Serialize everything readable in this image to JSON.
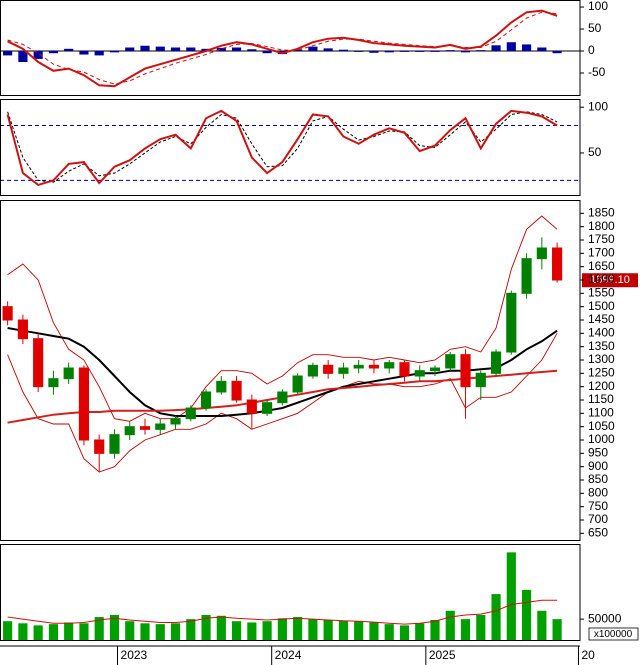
{
  "chart_data": [
    {
      "type": "macd",
      "ylim": [
        -100,
        116
      ],
      "yticks": [
        100,
        50,
        0,
        -50
      ],
      "macd": {
        "color": "#d01010",
        "values": [
          22,
          5,
          -25,
          -45,
          -40,
          -55,
          -78,
          -80,
          -60,
          -40,
          -30,
          -20,
          -10,
          0,
          12,
          20,
          15,
          5,
          -5,
          5,
          20,
          28,
          30,
          25,
          18,
          15,
          12,
          10,
          8,
          14,
          5,
          10,
          35,
          65,
          88,
          92,
          80
        ]
      },
      "signal": {
        "color": "#d01010",
        "values": [
          25,
          15,
          -5,
          -30,
          -42,
          -48,
          -65,
          -75,
          -68,
          -52,
          -40,
          -28,
          -18,
          -8,
          5,
          15,
          17,
          10,
          2,
          2,
          12,
          22,
          27,
          27,
          22,
          18,
          15,
          12,
          10,
          12,
          8,
          8,
          22,
          48,
          75,
          88,
          85
        ]
      },
      "histogram": {
        "color": "#0000a0",
        "values": [
          -10,
          -25,
          -18,
          -5,
          5,
          -8,
          -10,
          -3,
          8,
          12,
          10,
          8,
          8,
          5,
          7,
          8,
          4,
          -5,
          -7,
          3,
          10,
          6,
          3,
          -2,
          -4,
          -3,
          -2,
          -2,
          -2,
          2,
          -3,
          2,
          13,
          20,
          15,
          8,
          -5
        ]
      }
    },
    {
      "type": "stochastic",
      "ylim": [
        4,
        109
      ],
      "yticks": [
        100,
        50
      ],
      "reference_lines": [
        80,
        20
      ],
      "reference_color": "#0000a0",
      "k": {
        "color": "#d01010",
        "values": [
          92,
          28,
          15,
          20,
          38,
          40,
          17,
          35,
          42,
          55,
          65,
          70,
          55,
          88,
          96,
          85,
          45,
          28,
          40,
          65,
          92,
          90,
          68,
          60,
          70,
          77,
          72,
          52,
          58,
          75,
          88,
          55,
          82,
          96,
          94,
          90,
          80
        ]
      },
      "d": {
        "color": "#000000",
        "values": [
          95,
          45,
          20,
          18,
          30,
          38,
          25,
          28,
          38,
          50,
          62,
          68,
          60,
          78,
          92,
          88,
          60,
          35,
          36,
          55,
          85,
          90,
          76,
          64,
          68,
          74,
          73,
          58,
          56,
          70,
          84,
          62,
          76,
          92,
          95,
          92,
          84
        ]
      }
    },
    {
      "type": "candlestick",
      "ylim": [
        625,
        1900
      ],
      "yticks": [
        650,
        700,
        750,
        800,
        850,
        900,
        950,
        1000,
        1050,
        1100,
        1150,
        1200,
        1250,
        1300,
        1350,
        1400,
        1450,
        1500,
        1550,
        1600,
        1650,
        1700,
        1750,
        1800,
        1850
      ],
      "up_color": "#008000",
      "down_color": "#e00000",
      "open": [
        1500,
        1450,
        1380,
        1200,
        1230,
        1270,
        1000,
        950,
        1020,
        1050,
        1040,
        1060,
        1080,
        1120,
        1180,
        1220,
        1150,
        1100,
        1140,
        1180,
        1240,
        1280,
        1250,
        1270,
        1280,
        1270,
        1290,
        1240,
        1260,
        1270,
        1320,
        1200,
        1250,
        1330,
        1550,
        1680,
        1720
      ],
      "high": [
        1520,
        1470,
        1400,
        1260,
        1290,
        1280,
        1020,
        1040,
        1070,
        1080,
        1080,
        1090,
        1130,
        1190,
        1240,
        1240,
        1170,
        1150,
        1190,
        1250,
        1290,
        1300,
        1290,
        1300,
        1300,
        1300,
        1300,
        1280,
        1280,
        1330,
        1340,
        1260,
        1340,
        1560,
        1700,
        1760,
        1740
      ],
      "low": [
        1430,
        1360,
        1180,
        1170,
        1210,
        980,
        880,
        930,
        1000,
        1020,
        1020,
        1040,
        1070,
        1110,
        1170,
        1140,
        1040,
        1090,
        1130,
        1170,
        1230,
        1230,
        1230,
        1250,
        1250,
        1250,
        1220,
        1220,
        1240,
        1260,
        1080,
        1150,
        1240,
        1320,
        1530,
        1640,
        1590
      ],
      "close": [
        1450,
        1380,
        1200,
        1230,
        1270,
        1000,
        950,
        1020,
        1050,
        1040,
        1060,
        1080,
        1120,
        1180,
        1220,
        1150,
        1100,
        1140,
        1180,
        1240,
        1280,
        1250,
        1270,
        1280,
        1270,
        1290,
        1240,
        1260,
        1270,
        1320,
        1200,
        1250,
        1330,
        1550,
        1680,
        1720,
        1600
      ],
      "lines": [
        {
          "color": "#c00000",
          "values": [
            1620,
            1660,
            1600,
            1440,
            1340,
            1300,
            1200,
            1080,
            1070,
            1100,
            1080,
            1080,
            1120,
            1200,
            1260,
            1260,
            1250,
            1210,
            1240,
            1290,
            1320,
            1320,
            1310,
            1310,
            1300,
            1310,
            1300,
            1290,
            1300,
            1340,
            1350,
            1330,
            1420,
            1640,
            1790,
            1840,
            1790
          ]
        },
        {
          "color": "#c00000",
          "values": [
            1320,
            1180,
            1080,
            1060,
            1060,
            930,
            880,
            900,
            960,
            1000,
            1020,
            1040,
            1040,
            1060,
            1100,
            1080,
            1040,
            1060,
            1080,
            1100,
            1140,
            1180,
            1200,
            1220,
            1210,
            1210,
            1200,
            1200,
            1210,
            1230,
            1120,
            1160,
            1160,
            1180,
            1240,
            1300,
            1400
          ]
        },
        {
          "color": "#000000",
          "values": [
            1420,
            1410,
            1400,
            1390,
            1380,
            1350,
            1300,
            1240,
            1180,
            1130,
            1100,
            1090,
            1090,
            1090,
            1090,
            1095,
            1100,
            1110,
            1120,
            1140,
            1160,
            1180,
            1200,
            1210,
            1220,
            1230,
            1240,
            1250,
            1250,
            1260,
            1260,
            1265,
            1270,
            1300,
            1340,
            1370,
            1410
          ]
        },
        {
          "color": "#d02020",
          "values": [
            1065,
            1075,
            1085,
            1095,
            1100,
            1105,
            1105,
            1110,
            1110,
            1110,
            1110,
            1112,
            1115,
            1120,
            1125,
            1130,
            1140,
            1150,
            1160,
            1170,
            1180,
            1190,
            1195,
            1200,
            1205,
            1210,
            1215,
            1220,
            1220,
            1225,
            1230,
            1235,
            1240,
            1245,
            1250,
            1255,
            1260
          ]
        }
      ],
      "last_price": {
        "value": 1599.1,
        "label": "1599.10"
      }
    },
    {
      "type": "volume",
      "ylim": [
        0,
        230000
      ],
      "yticks": [
        50000
      ],
      "unit_label": "x100000",
      "xlim": [
        -0.5,
        37.5
      ],
      "xticks": [
        {
          "value": 7.2,
          "label": "2023"
        },
        {
          "value": 17.3,
          "label": "2024"
        },
        {
          "value": 27.4,
          "label": "2025"
        },
        {
          "value": 37.4,
          "label": "20"
        }
      ],
      "color": "#00a000",
      "values": [
        45000,
        40000,
        35000,
        38000,
        42000,
        40000,
        55000,
        60000,
        45000,
        40000,
        38000,
        40000,
        50000,
        60000,
        58000,
        45000,
        42000,
        45000,
        52000,
        55000,
        50000,
        48000,
        46000,
        45000,
        42000,
        38000,
        35000,
        40000,
        48000,
        70000,
        50000,
        60000,
        110000,
        210000,
        120000,
        70000,
        50000
      ],
      "ma": {
        "color": "#d01010",
        "values": [
          55000,
          50000,
          45000,
          40000,
          40000,
          42000,
          48000,
          52000,
          48000,
          45000,
          42000,
          42000,
          45000,
          52000,
          55000,
          52000,
          50000,
          48000,
          50000,
          52000,
          50000,
          48000,
          46000,
          45000,
          43000,
          40000,
          38000,
          40000,
          45000,
          55000,
          60000,
          62000,
          70000,
          85000,
          90000,
          95000,
          95000
        ]
      }
    }
  ]
}
